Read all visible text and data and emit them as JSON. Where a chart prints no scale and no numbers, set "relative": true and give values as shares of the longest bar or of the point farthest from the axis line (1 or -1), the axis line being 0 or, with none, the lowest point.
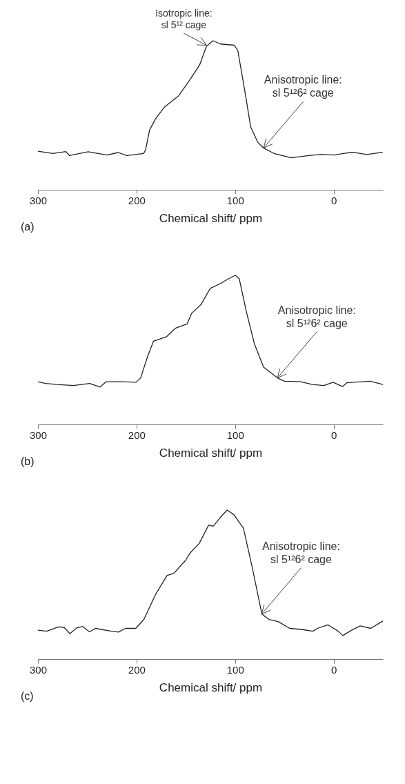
{
  "chart_data": [
    {
      "type": "line",
      "relative": true,
      "xlabel": "Chemical shift/ ppm",
      "xlim": [
        300,
        -50
      ],
      "xticks": [
        300,
        200,
        100,
        0
      ],
      "x": [
        300,
        284.7,
        271.7,
        268,
        249,
        230,
        218.6,
        210,
        192.7,
        190.8,
        186.8,
        180.9,
        171.5,
        157.3,
        145.5,
        136,
        129,
        122.4,
        114.9,
        100.7,
        97.2,
        90,
        84.2,
        77,
        71.2,
        60.6,
        43,
        25.2,
        13.4,
        -0.7,
        -10,
        -19.6,
        -33.7,
        -49.8
      ],
      "series": [
        {
          "color": "#222222",
          "values": [
            0.259,
            0.244,
            0.256,
            0.23,
            0.255,
            0.233,
            0.25,
            0.23,
            0.244,
            0.267,
            0.4,
            0.474,
            0.556,
            0.63,
            0.741,
            0.837,
            0.963,
            1.0,
            0.978,
            0.97,
            0.933,
            0.659,
            0.422,
            0.319,
            0.281,
            0.244,
            0.215,
            0.23,
            0.237,
            0.233,
            0.244,
            0.252,
            0.237,
            0.252
          ]
        }
      ],
      "annotations": [
        "(a)",
        {
          "text": "Isotropic line:\nsl 5¹² cage",
          "x": 129,
          "y": 0.97
        },
        {
          "text": "Anisotropic line:\nsl 5¹²6² cage",
          "x": 71,
          "y": 0.281
        }
      ]
    },
    {
      "type": "line",
      "relative": true,
      "xlabel": "Chemical shift/ ppm",
      "xlim": [
        300,
        -50
      ],
      "xticks": [
        300,
        200,
        100,
        0
      ],
      "x": [
        300,
        292.2,
        280.5,
        264,
        247.5,
        236.9,
        231,
        214.6,
        200.5,
        195.8,
        188.7,
        182.8,
        169.9,
        160.5,
        148.7,
        144,
        134.6,
        125.2,
        115.8,
        106.4,
        99.8,
        95.8,
        88.7,
        80.5,
        71.1,
        57,
        49.9,
        33.4,
        21.6,
        9.9,
        0.5,
        -8.9,
        -13.6,
        -37.2,
        -50
      ],
      "series": [
        {
          "color": "#222222",
          "values": [
            0.286,
            0.275,
            0.268,
            0.261,
            0.275,
            0.251,
            0.286,
            0.286,
            0.283,
            0.312,
            0.457,
            0.558,
            0.587,
            0.645,
            0.674,
            0.746,
            0.804,
            0.913,
            0.942,
            0.978,
            1.0,
            0.978,
            0.761,
            0.543,
            0.384,
            0.312,
            0.29,
            0.286,
            0.268,
            0.261,
            0.283,
            0.254,
            0.28,
            0.29,
            0.268
          ]
        }
      ],
      "annotations": [
        "(b)",
        {
          "text": "Anisotropic line:\nsl 5¹²6² cage",
          "x": 57,
          "y": 0.312
        }
      ]
    },
    {
      "type": "line",
      "relative": true,
      "xlabel": "Chemical shift/ ppm",
      "xlim": [
        300,
        -50
      ],
      "xticks": [
        300,
        200,
        100,
        0
      ],
      "x": [
        300,
        291.1,
        279.3,
        273.5,
        267.6,
        260.6,
        254.7,
        247.7,
        241.8,
        225.4,
        218.3,
        211.3,
        200.7,
        192.5,
        180.8,
        169,
        162,
        150.3,
        145.6,
        136.2,
        126.8,
        122.1,
        115,
        108,
        101,
        91.5,
        82.2,
        72.8,
        65.7,
        56.3,
        44.6,
        32.9,
        21.1,
        16.4,
        5.9,
        -4.7,
        -9.4,
        -16.4,
        -27,
        -37.6,
        -50
      ],
      "series": [
        {
          "color": "#222222",
          "values": [
            0.194,
            0.187,
            0.216,
            0.213,
            0.17,
            0.209,
            0.219,
            0.183,
            0.206,
            0.187,
            0.181,
            0.206,
            0.206,
            0.266,
            0.432,
            0.561,
            0.576,
            0.662,
            0.712,
            0.777,
            0.899,
            0.892,
            0.95,
            1.0,
            0.967,
            0.878,
            0.604,
            0.302,
            0.266,
            0.252,
            0.206,
            0.199,
            0.187,
            0.206,
            0.23,
            0.187,
            0.158,
            0.187,
            0.223,
            0.206,
            0.255
          ]
        }
      ],
      "annotations": [
        "(c)",
        {
          "text": "Anisotropic line:\nsl 5¹²6² cage",
          "x": 73,
          "y": 0.302
        }
      ]
    }
  ]
}
